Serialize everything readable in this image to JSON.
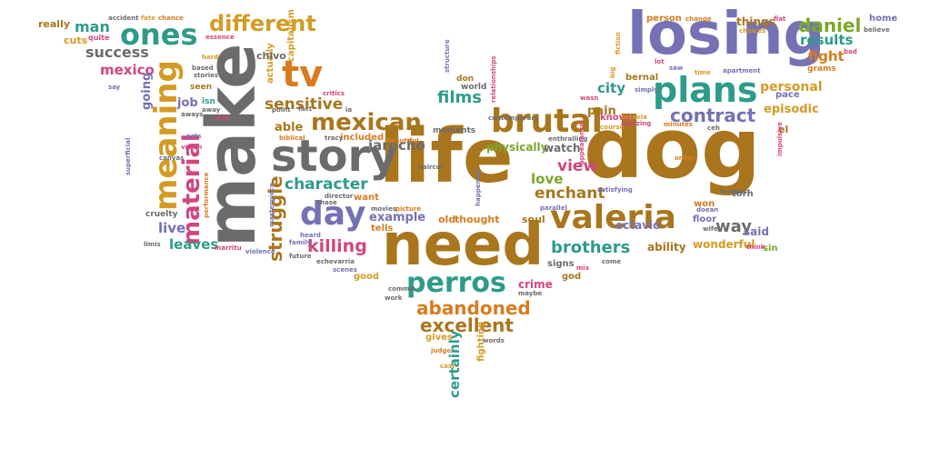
{
  "palette": {
    "brown": "#a9761d",
    "gray": "#6b6b6b",
    "teal": "#2e9b8a",
    "purple": "#7471b5",
    "orange": "#d97b1d",
    "green": "#7aa829",
    "pink": "#d1467e",
    "gold": "#d49b23"
  },
  "words": [
    {
      "text": "dog",
      "color": "brown"
    },
    {
      "text": "life",
      "color": "brown"
    },
    {
      "text": "need",
      "color": "brown"
    },
    {
      "text": "make",
      "color": "gray"
    },
    {
      "text": "losing",
      "color": "purple"
    },
    {
      "text": "story",
      "color": "gray"
    },
    {
      "text": "valeria",
      "color": "brown"
    },
    {
      "text": "day",
      "color": "purple"
    },
    {
      "text": "plans",
      "color": "teal"
    },
    {
      "text": "perros",
      "color": "teal"
    },
    {
      "text": "brutal",
      "color": "brown"
    },
    {
      "text": "ones",
      "color": "teal"
    },
    {
      "text": "meaning",
      "color": "gold"
    },
    {
      "text": "mexican",
      "color": "brown"
    },
    {
      "text": "material",
      "color": "pink"
    },
    {
      "text": "tv",
      "color": "orange"
    },
    {
      "text": "contract",
      "color": "purple"
    },
    {
      "text": "different",
      "color": "gold"
    },
    {
      "text": "abandoned",
      "color": "orange"
    },
    {
      "text": "excellent",
      "color": "brown"
    },
    {
      "text": "killing",
      "color": "pink"
    },
    {
      "text": "brothers",
      "color": "teal"
    },
    {
      "text": "struggle",
      "color": "brown"
    },
    {
      "text": "character",
      "color": "teal"
    },
    {
      "text": "daniel",
      "color": "green"
    },
    {
      "text": "way",
      "color": "gray"
    },
    {
      "text": "enchant",
      "color": "brown"
    },
    {
      "text": "view",
      "color": "pink"
    },
    {
      "text": "films",
      "color": "teal"
    },
    {
      "text": "sensitive",
      "color": "brown"
    },
    {
      "text": "success",
      "color": "gray"
    },
    {
      "text": "results",
      "color": "teal"
    },
    {
      "text": "certainly",
      "color": "teal"
    },
    {
      "text": "man",
      "color": "teal"
    },
    {
      "text": "jarocho",
      "color": "gray"
    },
    {
      "text": "love",
      "color": "green"
    },
    {
      "text": "city",
      "color": "teal"
    },
    {
      "text": "fight",
      "color": "orange"
    },
    {
      "text": "personal",
      "color": "gold"
    },
    {
      "text": "mexico",
      "color": "pink"
    },
    {
      "text": "live",
      "color": "purple"
    },
    {
      "text": "leaves",
      "color": "teal"
    },
    {
      "text": "able",
      "color": "brown"
    },
    {
      "text": "pain",
      "color": "brown"
    },
    {
      "text": "example",
      "color": "purple"
    },
    {
      "text": "episodic",
      "color": "gold"
    },
    {
      "text": "physically",
      "color": "green"
    },
    {
      "text": "watch",
      "color": "gray"
    },
    {
      "text": "crime",
      "color": "pink"
    },
    {
      "text": "going",
      "color": "purple"
    },
    {
      "text": "job",
      "color": "purple"
    },
    {
      "text": "wonderful",
      "color": "gold"
    },
    {
      "text": "ability",
      "color": "brown"
    },
    {
      "text": "octavio",
      "color": "purple"
    },
    {
      "text": "said",
      "color": "purple"
    },
    {
      "text": "actually",
      "color": "gold"
    },
    {
      "text": "capitalism",
      "color": "gold"
    },
    {
      "text": "chivo",
      "color": "gray"
    },
    {
      "text": "soul",
      "color": "brown"
    },
    {
      "text": "old",
      "color": "orange"
    },
    {
      "text": "thought",
      "color": "orange"
    },
    {
      "text": "cuts",
      "color": "gold"
    },
    {
      "text": "really",
      "color": "brown"
    },
    {
      "text": "things",
      "color": "brown"
    },
    {
      "text": "person",
      "color": "orange"
    },
    {
      "text": "home",
      "color": "purple"
    },
    {
      "text": "gives",
      "color": "gold"
    },
    {
      "text": "fighting",
      "color": "gold"
    },
    {
      "text": "signs",
      "color": "gray"
    },
    {
      "text": "god",
      "color": "brown"
    },
    {
      "text": "good",
      "color": "gold"
    },
    {
      "text": "tells",
      "color": "orange"
    },
    {
      "text": "want",
      "color": "orange"
    },
    {
      "text": "sin",
      "color": "green"
    },
    {
      "text": "bernal",
      "color": "brown"
    },
    {
      "text": "known",
      "color": "pink"
    },
    {
      "text": "torn",
      "color": "gray"
    },
    {
      "text": "won",
      "color": "orange"
    },
    {
      "text": "floor",
      "color": "purple"
    },
    {
      "text": "cruelty",
      "color": "gray"
    },
    {
      "text": "pace",
      "color": "purple"
    },
    {
      "text": "grams",
      "color": "orange"
    },
    {
      "text": "el",
      "color": "brown"
    },
    {
      "text": "world",
      "color": "gray"
    },
    {
      "text": "moments",
      "color": "gray"
    },
    {
      "text": "included",
      "color": "orange"
    },
    {
      "text": "don",
      "color": "brown"
    },
    {
      "text": "seen",
      "color": "brown"
    },
    {
      "text": "isn",
      "color": "teal"
    },
    {
      "text": "quite",
      "color": "pink"
    },
    {
      "text": "chance",
      "color": "orange"
    },
    {
      "text": "fate",
      "color": "gold"
    },
    {
      "text": "accident",
      "color": "gray"
    },
    {
      "text": "change",
      "color": "orange"
    },
    {
      "text": "fiat",
      "color": "pink"
    },
    {
      "text": "choices",
      "color": "gold"
    },
    {
      "text": "believe",
      "color": "gray"
    },
    {
      "text": "bad",
      "color": "pink"
    },
    {
      "text": "lot",
      "color": "pink"
    },
    {
      "text": "saw",
      "color": "purple"
    },
    {
      "text": "time",
      "color": "gold"
    },
    {
      "text": "apartment",
      "color": "purple"
    },
    {
      "text": "big",
      "color": "gold"
    },
    {
      "text": "simply",
      "color": "purple"
    },
    {
      "text": "wasn",
      "color": "pink"
    },
    {
      "text": "course",
      "color": "gold"
    },
    {
      "text": "octavia",
      "color": "gold"
    },
    {
      "text": "amazing",
      "color": "pink"
    },
    {
      "text": "minutes",
      "color": "orange"
    },
    {
      "text": "ceh",
      "color": "gray"
    },
    {
      "text": "order",
      "color": "orange"
    },
    {
      "text": "terrorist",
      "color": "gray"
    },
    {
      "text": "doean",
      "color": "purple"
    },
    {
      "text": "wife",
      "color": "gray"
    },
    {
      "text": "think",
      "color": "pink"
    },
    {
      "text": "parallel",
      "color": "purple"
    },
    {
      "text": "satisfying",
      "color": "purple"
    },
    {
      "text": "contemporary",
      "color": "gray"
    },
    {
      "text": "enthralling",
      "color": "gray"
    },
    {
      "text": "beautiful",
      "color": "orange"
    },
    {
      "text": "haircut",
      "color": "gray"
    },
    {
      "text": "happened",
      "color": "purple"
    },
    {
      "text": "picture",
      "color": "orange"
    },
    {
      "text": "movies",
      "color": "gray"
    },
    {
      "text": "director",
      "color": "gray"
    },
    {
      "text": "chase",
      "color": "gray"
    },
    {
      "text": "biblical",
      "color": "orange"
    },
    {
      "text": "tracy",
      "color": "gray"
    },
    {
      "text": "critics",
      "color": "pink"
    },
    {
      "text": "essence",
      "color": "pink"
    },
    {
      "text": "hard",
      "color": "gold"
    },
    {
      "text": "based",
      "color": "gray"
    },
    {
      "text": "stories",
      "color": "gray"
    },
    {
      "text": "say",
      "color": "purple"
    },
    {
      "text": "superficial",
      "color": "purple"
    },
    {
      "text": "acts",
      "color": "purple"
    },
    {
      "text": "vision",
      "color": "pink"
    },
    {
      "text": "performance",
      "color": "orange"
    },
    {
      "text": "masterpiece",
      "color": "purple"
    },
    {
      "text": "heard",
      "color": "purple"
    },
    {
      "text": "family",
      "color": "purple"
    },
    {
      "text": "inarritu",
      "color": "pink"
    },
    {
      "text": "violence",
      "color": "purple"
    },
    {
      "text": "future",
      "color": "gray"
    },
    {
      "text": "echevarria",
      "color": "gray"
    },
    {
      "text": "scenes",
      "color": "purple"
    },
    {
      "text": "commit",
      "color": "gray"
    },
    {
      "text": "work",
      "color": "gray"
    },
    {
      "text": "maybe",
      "color": "gray"
    },
    {
      "text": "mix",
      "color": "pink"
    },
    {
      "text": "judge",
      "color": "orange"
    },
    {
      "text": "cast",
      "color": "gold"
    },
    {
      "text": "words",
      "color": "gray"
    },
    {
      "text": "structure",
      "color": "purple"
    },
    {
      "text": "relationships",
      "color": "pink"
    },
    {
      "text": "ia",
      "color": "gray"
    },
    {
      "text": "point",
      "color": "gray"
    },
    {
      "text": "fact",
      "color": "gray"
    },
    {
      "text": "aways",
      "color": "gray"
    },
    {
      "text": "fiction",
      "color": "gold"
    },
    {
      "text": "impulsive",
      "color": "pink"
    },
    {
      "text": "limis",
      "color": "gray"
    },
    {
      "text": "appearance",
      "color": "pink"
    },
    {
      "text": "come",
      "color": "gray"
    },
    {
      "text": "away",
      "color": "gray"
    },
    {
      "text": "step",
      "color": "pink"
    },
    {
      "text": "canvas",
      "color": "gray"
    }
  ]
}
